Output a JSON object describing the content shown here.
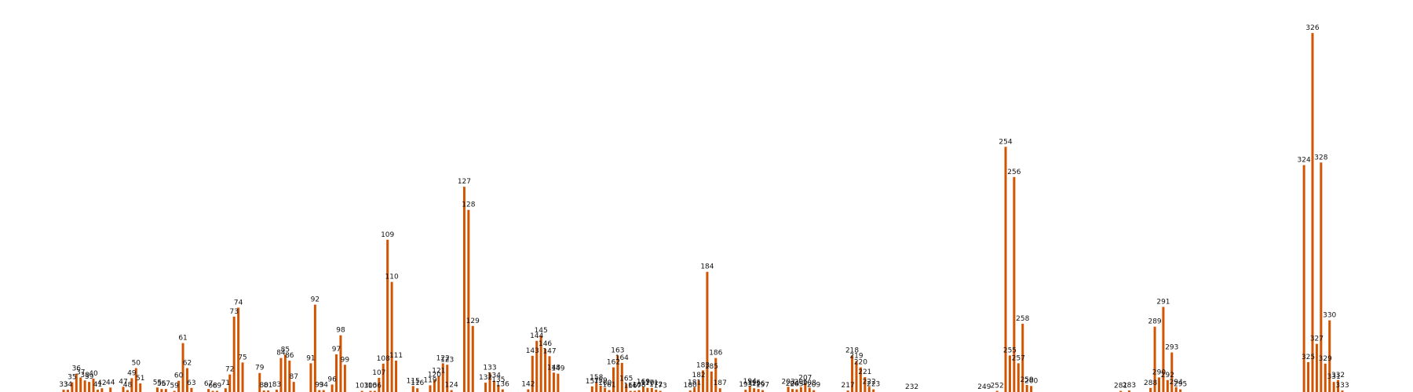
{
  "chart_data": {
    "type": "bar",
    "title": "",
    "xlabel": "",
    "ylabel": "",
    "bar_color": "#d35400",
    "ylim": [
      0,
      1000
    ],
    "xlim": [
      33,
      333
    ],
    "points": [
      {
        "label": "33",
        "x": 33,
        "value": 6
      },
      {
        "label": "34",
        "x": 34,
        "value": 6
      },
      {
        "label": "35",
        "x": 35,
        "value": 26
      },
      {
        "label": "36",
        "x": 36,
        "value": 49
      },
      {
        "label": "37",
        "x": 37,
        "value": 39
      },
      {
        "label": "38",
        "x": 38,
        "value": 31
      },
      {
        "label": "39",
        "x": 39,
        "value": 27
      },
      {
        "label": "40",
        "x": 40,
        "value": 36
      },
      {
        "label": "41",
        "x": 41,
        "value": 6
      },
      {
        "label": "42",
        "x": 42,
        "value": 10
      },
      {
        "label": "44",
        "x": 44,
        "value": 12
      },
      {
        "label": "47",
        "x": 47,
        "value": 14
      },
      {
        "label": "48",
        "x": 48,
        "value": 5
      },
      {
        "label": "49",
        "x": 49,
        "value": 37
      },
      {
        "label": "50",
        "x": 50,
        "value": 64
      },
      {
        "label": "51",
        "x": 51,
        "value": 23
      },
      {
        "label": "55",
        "x": 55,
        "value": 12
      },
      {
        "label": "56",
        "x": 56,
        "value": 8
      },
      {
        "label": "57",
        "x": 57,
        "value": 8
      },
      {
        "label": "59",
        "x": 59,
        "value": 3
      },
      {
        "label": "60",
        "x": 60,
        "value": 30
      },
      {
        "label": "61",
        "x": 61,
        "value": 131
      },
      {
        "label": "62",
        "x": 62,
        "value": 64
      },
      {
        "label": "63",
        "x": 63,
        "value": 11
      },
      {
        "label": "67",
        "x": 67,
        "value": 8
      },
      {
        "label": "68",
        "x": 68,
        "value": 3
      },
      {
        "label": "69",
        "x": 69,
        "value": 3
      },
      {
        "label": "71",
        "x": 71,
        "value": 10
      },
      {
        "label": "72",
        "x": 72,
        "value": 47
      },
      {
        "label": "73",
        "x": 73,
        "value": 202
      },
      {
        "label": "74",
        "x": 74,
        "value": 226
      },
      {
        "label": "75",
        "x": 75,
        "value": 79
      },
      {
        "label": "79",
        "x": 79,
        "value": 51
      },
      {
        "label": "80",
        "x": 80,
        "value": 4
      },
      {
        "label": "81",
        "x": 81,
        "value": 4
      },
      {
        "label": "83",
        "x": 83,
        "value": 6
      },
      {
        "label": "84",
        "x": 84,
        "value": 91
      },
      {
        "label": "85",
        "x": 85,
        "value": 100
      },
      {
        "label": "86",
        "x": 86,
        "value": 84
      },
      {
        "label": "87",
        "x": 87,
        "value": 27
      },
      {
        "label": "91",
        "x": 91,
        "value": 77
      },
      {
        "label": "92",
        "x": 92,
        "value": 234
      },
      {
        "label": "93",
        "x": 93,
        "value": 5
      },
      {
        "label": "94",
        "x": 94,
        "value": 5
      },
      {
        "label": "96",
        "x": 96,
        "value": 20
      },
      {
        "label": "97",
        "x": 97,
        "value": 101
      },
      {
        "label": "98",
        "x": 98,
        "value": 152
      },
      {
        "label": "99",
        "x": 99,
        "value": 73
      },
      {
        "label": "103",
        "x": 103,
        "value": 3
      },
      {
        "label": "105",
        "x": 105,
        "value": 3
      },
      {
        "label": "106",
        "x": 106,
        "value": 3
      },
      {
        "label": "107",
        "x": 107,
        "value": 38
      },
      {
        "label": "108",
        "x": 108,
        "value": 76
      },
      {
        "label": "109",
        "x": 109,
        "value": 408
      },
      {
        "label": "110",
        "x": 110,
        "value": 295
      },
      {
        "label": "111",
        "x": 111,
        "value": 84
      },
      {
        "label": "115",
        "x": 115,
        "value": 16
      },
      {
        "label": "116",
        "x": 116,
        "value": 10
      },
      {
        "label": "119",
        "x": 119,
        "value": 18
      },
      {
        "label": "120",
        "x": 120,
        "value": 33
      },
      {
        "label": "121",
        "x": 121,
        "value": 43
      },
      {
        "label": "122",
        "x": 122,
        "value": 77
      },
      {
        "label": "123",
        "x": 123,
        "value": 73
      },
      {
        "label": "124",
        "x": 124,
        "value": 5
      },
      {
        "label": "127",
        "x": 127,
        "value": 550
      },
      {
        "label": "128",
        "x": 128,
        "value": 488
      },
      {
        "label": "129",
        "x": 129,
        "value": 177
      },
      {
        "label": "132",
        "x": 132,
        "value": 25
      },
      {
        "label": "133",
        "x": 133,
        "value": 52
      },
      {
        "label": "134",
        "x": 134,
        "value": 30
      },
      {
        "label": "135",
        "x": 135,
        "value": 19
      },
      {
        "label": "136",
        "x": 136,
        "value": 7
      },
      {
        "label": "142",
        "x": 142,
        "value": 7
      },
      {
        "label": "143",
        "x": 143,
        "value": 97
      },
      {
        "label": "144",
        "x": 144,
        "value": 137
      },
      {
        "label": "145",
        "x": 145,
        "value": 151
      },
      {
        "label": "146",
        "x": 146,
        "value": 116
      },
      {
        "label": "147",
        "x": 147,
        "value": 96
      },
      {
        "label": "148",
        "x": 148,
        "value": 52
      },
      {
        "label": "149",
        "x": 149,
        "value": 49
      },
      {
        "label": "157",
        "x": 157,
        "value": 15
      },
      {
        "label": "158",
        "x": 158,
        "value": 25
      },
      {
        "label": "159",
        "x": 159,
        "value": 17
      },
      {
        "label": "160",
        "x": 160,
        "value": 11
      },
      {
        "label": "161",
        "x": 161,
        "value": 5
      },
      {
        "label": "162",
        "x": 162,
        "value": 66
      },
      {
        "label": "163",
        "x": 163,
        "value": 98
      },
      {
        "label": "164",
        "x": 164,
        "value": 78
      },
      {
        "label": "165",
        "x": 165,
        "value": 22
      },
      {
        "label": "166",
        "x": 166,
        "value": 3
      },
      {
        "label": "167",
        "x": 167,
        "value": 3
      },
      {
        "label": "168",
        "x": 168,
        "value": 5
      },
      {
        "label": "169",
        "x": 169,
        "value": 14
      },
      {
        "label": "170",
        "x": 170,
        "value": 11
      },
      {
        "label": "171",
        "x": 171,
        "value": 11
      },
      {
        "label": "172",
        "x": 172,
        "value": 6
      },
      {
        "label": "173",
        "x": 173,
        "value": 3
      },
      {
        "label": "180",
        "x": 180,
        "value": 4
      },
      {
        "label": "181",
        "x": 181,
        "value": 12
      },
      {
        "label": "182",
        "x": 182,
        "value": 31
      },
      {
        "label": "183",
        "x": 183,
        "value": 58
      },
      {
        "label": "184",
        "x": 184,
        "value": 322
      },
      {
        "label": "185",
        "x": 185,
        "value": 55
      },
      {
        "label": "186",
        "x": 186,
        "value": 91
      },
      {
        "label": "187",
        "x": 187,
        "value": 10
      },
      {
        "label": "193",
        "x": 193,
        "value": 6
      },
      {
        "label": "194",
        "x": 194,
        "value": 15
      },
      {
        "label": "195",
        "x": 195,
        "value": 10
      },
      {
        "label": "196",
        "x": 196,
        "value": 8
      },
      {
        "label": "197",
        "x": 197,
        "value": 5
      },
      {
        "label": "203",
        "x": 203,
        "value": 14
      },
      {
        "label": "204",
        "x": 204,
        "value": 8
      },
      {
        "label": "205",
        "x": 205,
        "value": 7
      },
      {
        "label": "206",
        "x": 206,
        "value": 13
      },
      {
        "label": "207",
        "x": 207,
        "value": 24
      },
      {
        "label": "208",
        "x": 208,
        "value": 11
      },
      {
        "label": "209",
        "x": 209,
        "value": 5
      },
      {
        "label": "217",
        "x": 217,
        "value": 4
      },
      {
        "label": "218",
        "x": 218,
        "value": 98
      },
      {
        "label": "219",
        "x": 219,
        "value": 83
      },
      {
        "label": "220",
        "x": 220,
        "value": 66
      },
      {
        "label": "221",
        "x": 221,
        "value": 40
      },
      {
        "label": "222",
        "x": 222,
        "value": 14
      },
      {
        "label": "223",
        "x": 223,
        "value": 7
      },
      {
        "label": "232",
        "x": 232,
        "value": 0
      },
      {
        "label": "249",
        "x": 249,
        "value": 0
      },
      {
        "label": "252",
        "x": 252,
        "value": 3
      },
      {
        "label": "254",
        "x": 254,
        "value": 657
      },
      {
        "label": "255",
        "x": 255,
        "value": 98
      },
      {
        "label": "256",
        "x": 256,
        "value": 576
      },
      {
        "label": "257",
        "x": 257,
        "value": 77
      },
      {
        "label": "258",
        "x": 258,
        "value": 183
      },
      {
        "label": "259",
        "x": 259,
        "value": 19
      },
      {
        "label": "260",
        "x": 260,
        "value": 16
      },
      {
        "label": "281",
        "x": 281,
        "value": 3
      },
      {
        "label": "283",
        "x": 283,
        "value": 4
      },
      {
        "label": "288",
        "x": 288,
        "value": 11
      },
      {
        "label": "289",
        "x": 289,
        "value": 175
      },
      {
        "label": "290",
        "x": 290,
        "value": 39
      },
      {
        "label": "291",
        "x": 291,
        "value": 228
      },
      {
        "label": "292",
        "x": 292,
        "value": 32
      },
      {
        "label": "293",
        "x": 293,
        "value": 106
      },
      {
        "label": "294",
        "x": 294,
        "value": 13
      },
      {
        "label": "295",
        "x": 295,
        "value": 7
      },
      {
        "label": "324",
        "x": 324,
        "value": 608
      },
      {
        "label": "325",
        "x": 325,
        "value": 80
      },
      {
        "label": "326",
        "x": 326,
        "value": 962
      },
      {
        "label": "327",
        "x": 327,
        "value": 129
      },
      {
        "label": "328",
        "x": 328,
        "value": 615
      },
      {
        "label": "329",
        "x": 329,
        "value": 76
      },
      {
        "label": "330",
        "x": 330,
        "value": 192
      },
      {
        "label": "331",
        "x": 331,
        "value": 27
      },
      {
        "label": "332",
        "x": 332,
        "value": 32
      },
      {
        "label": "333",
        "x": 333,
        "value": 4
      }
    ]
  }
}
